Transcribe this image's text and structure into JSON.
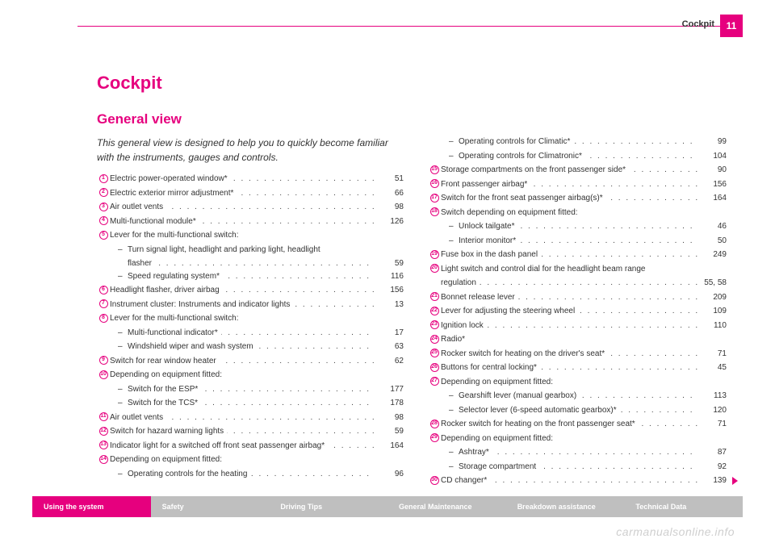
{
  "header": {
    "section": "Cockpit",
    "pageNumber": "11"
  },
  "title": "Cockpit",
  "subtitle": "General view",
  "intro": "This general view is designed to help you to quickly become familiar with the instruments, gauges and controls.",
  "colors": {
    "accent": "#e6007e",
    "text": "#333333",
    "footerGrey": "#bfbfbf",
    "watermark": "#cfcfcf"
  },
  "left": [
    {
      "n": "1",
      "t": "Electric power-operated window*",
      "p": "51"
    },
    {
      "n": "2",
      "t": "Electric exterior mirror adjustment*",
      "p": "66"
    },
    {
      "n": "3",
      "t": "Air outlet vents",
      "p": "98"
    },
    {
      "n": "4",
      "t": "Multi-functional module*",
      "p": "126"
    },
    {
      "n": "5",
      "t": "Lever for the multi-functional switch:",
      "p": "",
      "nodots": true
    },
    {
      "sub": true,
      "t": "Turn signal light, headlight and parking light, headlight",
      "p": "",
      "nodots": true
    },
    {
      "sub2": true,
      "t": "flasher",
      "p": "59"
    },
    {
      "sub": true,
      "t": "Speed regulating system*",
      "p": "116"
    },
    {
      "n": "6",
      "t": "Headlight flasher, driver airbag",
      "p": "156"
    },
    {
      "n": "7",
      "t": "Instrument cluster: Instruments and indicator lights",
      "p": "13"
    },
    {
      "n": "8",
      "t": "Lever for the multi-functional switch:",
      "p": "",
      "nodots": true
    },
    {
      "sub": true,
      "t": "Multi-functional indicator*",
      "p": "17"
    },
    {
      "sub": true,
      "t": "Windshield wiper and wash system",
      "p": "63"
    },
    {
      "n": "9",
      "t": "Switch for rear window heater",
      "p": "62"
    },
    {
      "n": "10",
      "t": "Depending on equipment fitted:",
      "p": "",
      "nodots": true
    },
    {
      "sub": true,
      "t": "Switch for the ESP*",
      "p": "177"
    },
    {
      "sub": true,
      "t": "Switch for the TCS*",
      "p": "178"
    },
    {
      "n": "11",
      "t": "Air outlet vents",
      "p": "98"
    },
    {
      "n": "12",
      "t": "Switch for hazard warning lights",
      "p": "59"
    },
    {
      "n": "13",
      "t": "Indicator light for a switched off front seat passenger airbag*",
      "p": "164"
    },
    {
      "n": "14",
      "t": "Depending on equipment fitted:",
      "p": "",
      "nodots": true
    },
    {
      "sub": true,
      "t": "Operating controls for the heating",
      "p": "96"
    }
  ],
  "right": [
    {
      "sub": true,
      "t": "Operating controls for Climatic*",
      "p": "99"
    },
    {
      "sub": true,
      "t": "Operating controls for Climatronic*",
      "p": "104"
    },
    {
      "n": "15",
      "t": "Storage compartments on the front passenger side*",
      "p": "90"
    },
    {
      "n": "16",
      "t": "Front passenger airbag*",
      "p": "156"
    },
    {
      "n": "17",
      "t": "Switch for the front seat passenger airbag(s)*",
      "p": "164"
    },
    {
      "n": "18",
      "t": "Switch depending on equipment fitted:",
      "p": "",
      "nodots": true
    },
    {
      "sub": true,
      "t": "Unlock tailgate*",
      "p": "46"
    },
    {
      "sub": true,
      "t": "Interior monitor*",
      "p": "50"
    },
    {
      "n": "19",
      "t": "Fuse box in the dash panel",
      "p": "249"
    },
    {
      "n": "20",
      "t": "Light switch and control dial for the headlight beam range",
      "p": "",
      "nodots": true
    },
    {
      "cont": true,
      "t": "regulation",
      "p": "55, 58"
    },
    {
      "n": "21",
      "t": "Bonnet release lever",
      "p": "209"
    },
    {
      "n": "22",
      "t": "Lever for adjusting the steering wheel",
      "p": "109"
    },
    {
      "n": "23",
      "t": "Ignition lock",
      "p": "110"
    },
    {
      "n": "24",
      "t": "Radio*",
      "p": "",
      "nodots": true
    },
    {
      "n": "25",
      "t": "Rocker switch for heating on the driver's seat*",
      "p": "71"
    },
    {
      "n": "26",
      "t": "Buttons for central locking*",
      "p": "45"
    },
    {
      "n": "27",
      "t": "Depending on equipment fitted:",
      "p": "",
      "nodots": true
    },
    {
      "sub": true,
      "t": "Gearshift lever (manual gearbox)",
      "p": "113"
    },
    {
      "sub": true,
      "t": "Selector lever (6-speed automatic gearbox)*",
      "p": "120"
    },
    {
      "n": "28",
      "t": "Rocker switch for heating on the front passenger seat*",
      "p": "71"
    },
    {
      "n": "29",
      "t": "Depending on equipment fitted:",
      "p": "",
      "nodots": true
    },
    {
      "sub": true,
      "t": "Ashtray*",
      "p": "87"
    },
    {
      "sub": true,
      "t": "Storage compartment",
      "p": "92"
    },
    {
      "n": "30",
      "t": "CD changer*",
      "p": "139"
    }
  ],
  "footer": [
    "Using the system",
    "Safety",
    "Driving Tips",
    "General Maintenance",
    "Breakdown assistance",
    "Technical Data"
  ],
  "watermark": "carmanualsonline.info"
}
